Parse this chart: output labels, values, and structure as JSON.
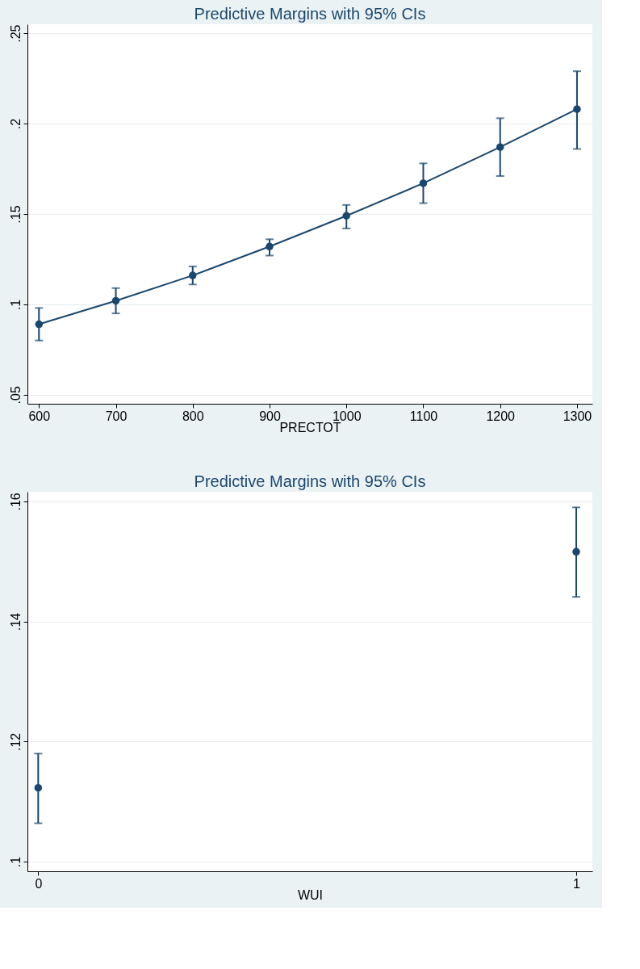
{
  "chart_data": [
    {
      "type": "line",
      "title": "Predictive Margins with 95% CIs",
      "xlabel": "PRECTOT",
      "x": [
        600,
        700,
        800,
        900,
        1000,
        1100,
        1200,
        1300
      ],
      "series": [
        {
          "color": "#1a476f",
          "values": [
            0.089,
            0.102,
            0.116,
            0.132,
            0.149,
            0.167,
            0.187,
            0.208
          ],
          "errors": [
            [
              0.08,
              0.098
            ],
            [
              0.095,
              0.109
            ],
            [
              0.111,
              0.121
            ],
            [
              0.127,
              0.136
            ],
            [
              0.142,
              0.155
            ],
            [
              0.156,
              0.178
            ],
            [
              0.171,
              0.203
            ],
            [
              0.186,
              0.229
            ]
          ]
        }
      ],
      "xlim": [
        585,
        1320
      ],
      "xticks": [
        600,
        700,
        800,
        900,
        1000,
        1100,
        1200,
        1300
      ],
      "ylim": [
        0.045,
        0.255
      ],
      "yticks": [
        {
          "value": 0.05,
          "label": ".05"
        },
        {
          "value": 0.1,
          "label": ".1"
        },
        {
          "value": 0.15,
          "label": ".15"
        },
        {
          "value": 0.2,
          "label": ".2"
        },
        {
          "value": 0.25,
          "label": ".25"
        }
      ],
      "grid": "y",
      "marker": "circle",
      "line_style": "solid"
    },
    {
      "type": "scatter",
      "title": "Predictive Margins with 95% CIs",
      "xlabel": "WUI",
      "x": [
        0,
        1
      ],
      "series": [
        {
          "color": "#1a476f",
          "values": [
            0.1123,
            0.1516
          ],
          "errors": [
            [
              0.1064,
              0.118
            ],
            [
              0.1441,
              0.159
            ]
          ]
        }
      ],
      "xlim": [
        -0.02,
        1.03
      ],
      "xticks": [
        0,
        1
      ],
      "ylim": [
        0.0984,
        0.1616
      ],
      "yticks": [
        {
          "value": 0.1,
          "label": ".1"
        },
        {
          "value": 0.12,
          "label": ".12"
        },
        {
          "value": 0.14,
          "label": ".14"
        },
        {
          "value": 0.16,
          "label": ".16"
        }
      ],
      "grid": "y",
      "marker": "circle"
    }
  ]
}
